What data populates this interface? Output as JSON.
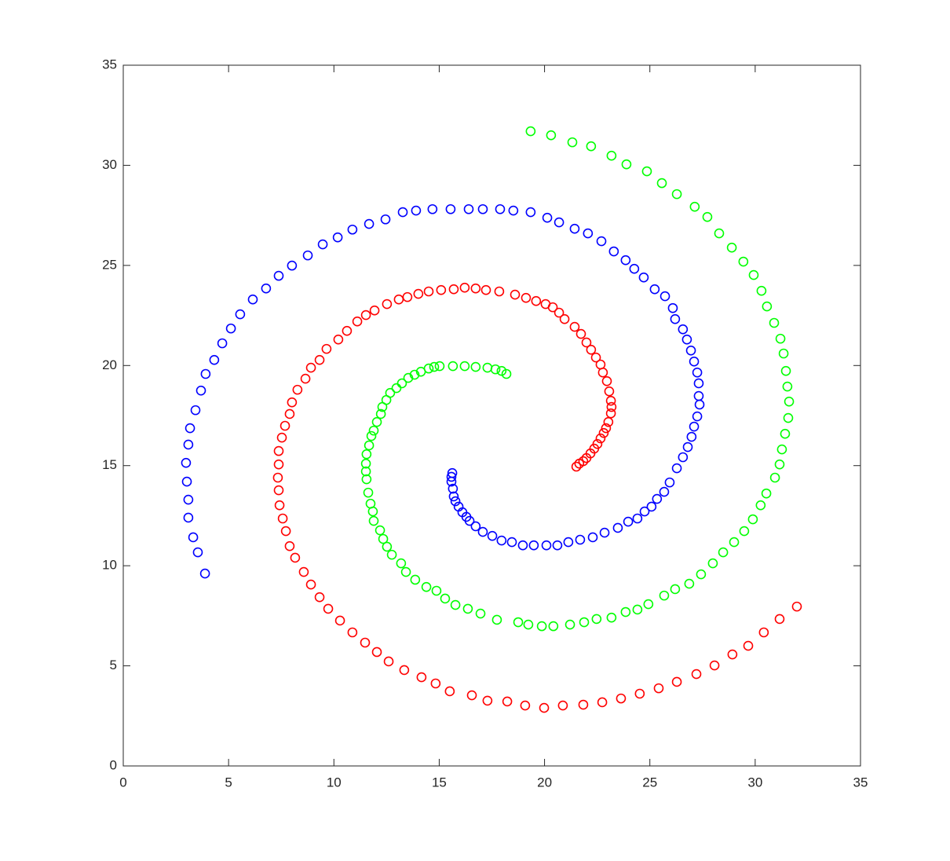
{
  "chart_data": {
    "type": "scatter",
    "xlim": [
      0,
      35
    ],
    "ylim": [
      0,
      35
    ],
    "xticks": [
      0,
      5,
      10,
      15,
      20,
      25,
      30,
      35
    ],
    "yticks": [
      0,
      5,
      10,
      15,
      20,
      25,
      30,
      35
    ],
    "marker": "circle",
    "series": [
      {
        "color": "#0000ff",
        "x": [
          3.88,
          3.54,
          3.32,
          3.09,
          3.09,
          3.02,
          2.98,
          3.09,
          3.17,
          3.43,
          3.69,
          3.91,
          4.32,
          4.7,
          5.11,
          5.55,
          6.15,
          6.78,
          7.38,
          8.01,
          8.76,
          9.47,
          10.18,
          10.88,
          11.67,
          12.45,
          13.27,
          13.9,
          14.68,
          15.54,
          16.4,
          17.07,
          17.89,
          18.52,
          19.34,
          20.13,
          20.69,
          21.43,
          22.06,
          22.7,
          23.29,
          23.85,
          24.26,
          24.71,
          25.23,
          25.72,
          26.09,
          26.2,
          26.57,
          26.76,
          26.95,
          27.1,
          27.25,
          27.32,
          27.32,
          27.36,
          27.25,
          27.1,
          26.98,
          26.8,
          26.57,
          26.28,
          25.94,
          25.68,
          25.34,
          25.08,
          24.75,
          24.41,
          23.97,
          23.48,
          22.85,
          22.29,
          21.69,
          21.13,
          20.61,
          20.09,
          19.49,
          18.97,
          18.45,
          17.96,
          17.52,
          17.07,
          16.73,
          16.44,
          16.29,
          16.1,
          15.92,
          15.77,
          15.69,
          15.65,
          15.58,
          15.58,
          15.62
        ],
        "values": [
          9.61,
          10.67,
          11.42,
          12.4,
          13.3,
          14.2,
          15.14,
          16.05,
          16.87,
          17.77,
          18.75,
          19.58,
          20.28,
          21.11,
          21.85,
          22.56,
          23.3,
          23.85,
          24.48,
          24.99,
          25.5,
          26.05,
          26.4,
          26.79,
          27.07,
          27.3,
          27.66,
          27.74,
          27.81,
          27.81,
          27.81,
          27.81,
          27.81,
          27.74,
          27.66,
          27.38,
          27.15,
          26.83,
          26.6,
          26.21,
          25.7,
          25.26,
          24.83,
          24.4,
          23.81,
          23.46,
          22.87,
          22.32,
          21.81,
          21.3,
          20.75,
          20.2,
          19.65,
          19.11,
          18.48,
          18.05,
          17.46,
          16.95,
          16.44,
          15.93,
          15.42,
          14.87,
          14.16,
          13.69,
          13.34,
          12.95,
          12.71,
          12.36,
          12.2,
          11.89,
          11.65,
          11.42,
          11.3,
          11.18,
          11.02,
          11.02,
          11.02,
          11.02,
          11.18,
          11.26,
          11.49,
          11.69,
          11.97,
          12.24,
          12.44,
          12.67,
          12.95,
          13.22,
          13.46,
          13.85,
          14.2,
          14.44,
          14.63
        ]
      },
      {
        "color": "#ff0000",
        "x": [
          31.98,
          31.16,
          30.41,
          29.67,
          28.92,
          28.07,
          27.21,
          26.28,
          25.42,
          24.52,
          23.63,
          22.74,
          21.84,
          20.87,
          19.98,
          19.08,
          18.23,
          17.29,
          16.55,
          15.5,
          14.83,
          14.16,
          13.34,
          12.6,
          12.04,
          11.48,
          10.88,
          10.29,
          9.73,
          9.32,
          8.91,
          8.57,
          8.16,
          7.9,
          7.72,
          7.57,
          7.42,
          7.38,
          7.34,
          7.38,
          7.38,
          7.53,
          7.68,
          7.9,
          8.01,
          8.27,
          8.65,
          8.91,
          9.32,
          9.65,
          10.21,
          10.62,
          11.11,
          11.52,
          11.93,
          12.52,
          13.08,
          13.49,
          14.01,
          14.5,
          15.09,
          15.69,
          16.21,
          16.73,
          17.22,
          17.85,
          18.6,
          19.12,
          19.6,
          20.05,
          20.39,
          20.69,
          20.95,
          21.43,
          21.73,
          21.99,
          22.21,
          22.44,
          22.66,
          22.77,
          22.96,
          23.07,
          23.15,
          23.18,
          23.15,
          23.03,
          22.92,
          22.81,
          22.66,
          22.51,
          22.36,
          22.18,
          21.99,
          21.84,
          21.65,
          21.51
        ],
        "values": [
          7.96,
          7.34,
          6.67,
          6.0,
          5.57,
          5.02,
          4.59,
          4.2,
          3.88,
          3.61,
          3.37,
          3.18,
          3.06,
          3.02,
          2.9,
          3.02,
          3.22,
          3.26,
          3.53,
          3.73,
          4.12,
          4.43,
          4.79,
          5.22,
          5.69,
          6.16,
          6.67,
          7.26,
          7.85,
          8.43,
          9.06,
          9.69,
          10.4,
          10.98,
          11.73,
          12.36,
          13.02,
          13.77,
          14.4,
          15.06,
          15.73,
          16.4,
          16.99,
          17.58,
          18.16,
          18.79,
          19.34,
          19.89,
          20.28,
          20.83,
          21.3,
          21.73,
          22.2,
          22.52,
          22.75,
          23.07,
          23.3,
          23.42,
          23.58,
          23.7,
          23.77,
          23.81,
          23.89,
          23.85,
          23.77,
          23.7,
          23.54,
          23.38,
          23.22,
          23.07,
          22.91,
          22.64,
          22.32,
          21.93,
          21.58,
          21.15,
          20.79,
          20.4,
          20.05,
          19.65,
          19.22,
          18.71,
          18.24,
          17.93,
          17.61,
          17.18,
          16.87,
          16.63,
          16.36,
          16.08,
          15.85,
          15.61,
          15.38,
          15.22,
          15.1,
          14.95
        ]
      },
      {
        "color": "#00ff00",
        "x": [
          19.34,
          20.31,
          21.32,
          22.21,
          23.18,
          23.89,
          24.86,
          25.57,
          26.28,
          27.13,
          27.73,
          28.29,
          28.89,
          29.44,
          29.93,
          30.3,
          30.56,
          30.9,
          31.2,
          31.35,
          31.46,
          31.53,
          31.61,
          31.57,
          31.42,
          31.27,
          31.16,
          30.94,
          30.53,
          30.26,
          29.89,
          29.48,
          29.0,
          28.48,
          27.99,
          27.43,
          26.87,
          26.2,
          25.68,
          24.93,
          24.41,
          23.85,
          23.18,
          22.47,
          21.88,
          21.21,
          20.42,
          19.87,
          19.23,
          18.75,
          17.74,
          16.96,
          16.36,
          15.77,
          15.28,
          14.87,
          14.39,
          13.86,
          13.42,
          13.19,
          12.75,
          12.52,
          12.34,
          12.19,
          11.89,
          11.85,
          11.74,
          11.63,
          11.55,
          11.52,
          11.52,
          11.55,
          11.67,
          11.78,
          11.89,
          12.04,
          12.23,
          12.3,
          12.49,
          12.67,
          12.97,
          13.23,
          13.53,
          13.83,
          14.13,
          14.5,
          14.76,
          15.02,
          15.65,
          16.21,
          16.73,
          17.29,
          17.67,
          17.96,
          18.19
        ],
        "values": [
          31.7,
          31.5,
          31.15,
          30.95,
          30.48,
          30.05,
          29.7,
          29.11,
          28.56,
          27.93,
          27.42,
          26.6,
          25.89,
          25.19,
          24.52,
          23.73,
          22.95,
          22.13,
          21.34,
          20.6,
          19.73,
          18.95,
          18.2,
          17.38,
          16.59,
          15.81,
          15.06,
          14.4,
          13.61,
          13.02,
          12.32,
          11.73,
          11.18,
          10.67,
          10.12,
          9.57,
          9.1,
          8.83,
          8.51,
          8.08,
          7.81,
          7.69,
          7.41,
          7.34,
          7.18,
          7.06,
          6.98,
          6.98,
          7.06,
          7.18,
          7.3,
          7.61,
          7.85,
          8.04,
          8.36,
          8.75,
          8.94,
          9.3,
          9.69,
          10.12,
          10.55,
          10.95,
          11.34,
          11.77,
          12.24,
          12.71,
          13.1,
          13.65,
          14.32,
          14.71,
          15.1,
          15.57,
          16.01,
          16.48,
          16.75,
          17.18,
          17.58,
          17.93,
          18.28,
          18.63,
          18.87,
          19.11,
          19.38,
          19.54,
          19.69,
          19.85,
          19.93,
          19.97,
          19.97,
          19.97,
          19.93,
          19.89,
          19.81,
          19.73,
          19.58
        ]
      }
    ]
  }
}
